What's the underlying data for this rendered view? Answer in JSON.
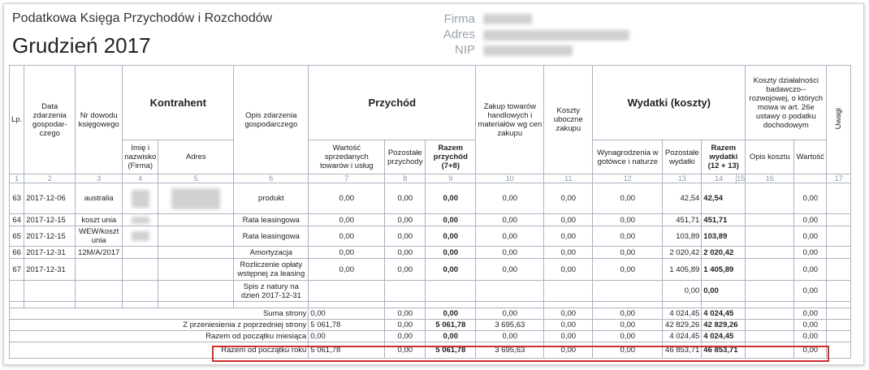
{
  "header": {
    "book_title": "Podatkowa Księga Przychodów i Rozchodów",
    "period": "Grudzień 2017",
    "firm_label": "Firma",
    "address_label": "Adres",
    "nip_label": "NIP"
  },
  "columns": {
    "lp": "Lp.",
    "date": "Data zdarzenia gospodar-czego",
    "doc_no": "Nr dowodu księgowego",
    "contractor": "Kontrahent",
    "name": "Imię i nazwisko (Firma)",
    "address": "Adres",
    "description": "Opis zdarzenia gospodarczego",
    "income": "Przychód",
    "sales_value": "Wartość sprzedanych towarów i usług",
    "other_income": "Pozostałe przychody",
    "total_income": "Razem przychód (7+8)",
    "purchases": "Zakup towarów handlowych i materiałów wg cen zakupu",
    "side_costs": "Koszty uboczne zakupu",
    "expenses": "Wydatki (koszty)",
    "salaries": "Wynagrodzenia w gotówce i naturze",
    "other_expenses": "Pozostałe wydatki",
    "total_expenses": "Razem wydatki (12 + 13)",
    "rd_costs": "Koszty działalności badawczo--rozwojowej, o których mowa w art. 26e ustawy o podatku dochodowym",
    "rd_desc": "Opis kosztu",
    "rd_value": "Wartość",
    "notes": "Uwagi"
  },
  "column_numbers": [
    "1",
    "2",
    "3",
    "4",
    "5",
    "6",
    "7",
    "8",
    "9",
    "10",
    "11",
    "12",
    "13",
    "14",
    "15",
    "16",
    "17"
  ],
  "rows": [
    {
      "lp": "63",
      "date": "2017-12-06",
      "doc": "australia",
      "desc": "produkt",
      "c7": "0,00",
      "c8": "0,00",
      "c9": "0,00",
      "c10": "0,00",
      "c11": "0,00",
      "c12": "0,00",
      "c13": "42,54",
      "c14": "42,54",
      "c16v": "0,00"
    },
    {
      "lp": "64",
      "date": "2017-12-15",
      "doc": "koszt unia",
      "desc": "Rata leasingowa",
      "c7": "0,00",
      "c8": "0,00",
      "c9": "0,00",
      "c10": "0,00",
      "c11": "0,00",
      "c12": "0,00",
      "c13": "451,71",
      "c14": "451,71",
      "c16v": "0,00"
    },
    {
      "lp": "65",
      "date": "2017-12-15",
      "doc": "WEW/koszt unia",
      "desc": "Rata leasingowa",
      "c7": "0,00",
      "c8": "0,00",
      "c9": "0,00",
      "c10": "0,00",
      "c11": "0,00",
      "c12": "0,00",
      "c13": "103,89",
      "c14": "103,89",
      "c16v": "0,00"
    },
    {
      "lp": "66",
      "date": "2017-12-31",
      "doc": "12M/A/2017",
      "desc": "Amortyzacja",
      "c7": "0,00",
      "c8": "0,00",
      "c9": "0,00",
      "c10": "0,00",
      "c11": "0,00",
      "c12": "0,00",
      "c13": "2 020,42",
      "c14": "2 020,42",
      "c16v": "0,00"
    },
    {
      "lp": "67",
      "date": "2017-12-31",
      "doc": "",
      "desc": "Rozliczenie opłaty wstępnej za leasing",
      "c7": "0,00",
      "c8": "0,00",
      "c9": "0,00",
      "c10": "0,00",
      "c11": "0,00",
      "c12": "0,00",
      "c13": "1 405,89",
      "c14": "1 405,89",
      "c16v": "0,00"
    },
    {
      "lp": "",
      "date": "",
      "doc": "",
      "desc": "Spis z natury na dzień 2017-12-31",
      "c7": "",
      "c8": "",
      "c9": "",
      "c10": "",
      "c11": "",
      "c12": "",
      "c13": "0,00",
      "c14": "0,00",
      "c16v": "0,00"
    }
  ],
  "summary": [
    {
      "label": "Suma strony",
      "c7": "0,00",
      "c8": "0,00",
      "c9": "0,00",
      "c10": "0,00",
      "c11": "0,00",
      "c12": "0,00",
      "c13": "4 024,45",
      "c14": "4 024,45",
      "c16v": "0,00"
    },
    {
      "label": "Z przeniesienia z poprzedniej strony",
      "c7": "5 061,78",
      "c8": "0,00",
      "c9": "5 061,78",
      "c10": "3 695,63",
      "c11": "0,00",
      "c12": "0,00",
      "c13": "42 829,26",
      "c14": "42 829,26",
      "c16v": "0,00"
    },
    {
      "label": "Razem od początku miesiąca",
      "c7": "0,00",
      "c8": "0,00",
      "c9": "0,00",
      "c10": "0,00",
      "c11": "0,00",
      "c12": "0,00",
      "c13": "4 024,45",
      "c14": "4 024,45",
      "c16v": "0,00"
    },
    {
      "label": "Razem od początku roku",
      "c7": "5 061,78",
      "c8": "0,00",
      "c9": "5 061,78",
      "c10": "3 695,63",
      "c11": "0,00",
      "c12": "0,00",
      "c13": "46 853,71",
      "c14": "46 853,71",
      "c16v": "0,00"
    }
  ],
  "colors": {
    "grid": "#a8b4c2",
    "highlight": "#d32f2f",
    "muted": "#9aa4ad"
  }
}
